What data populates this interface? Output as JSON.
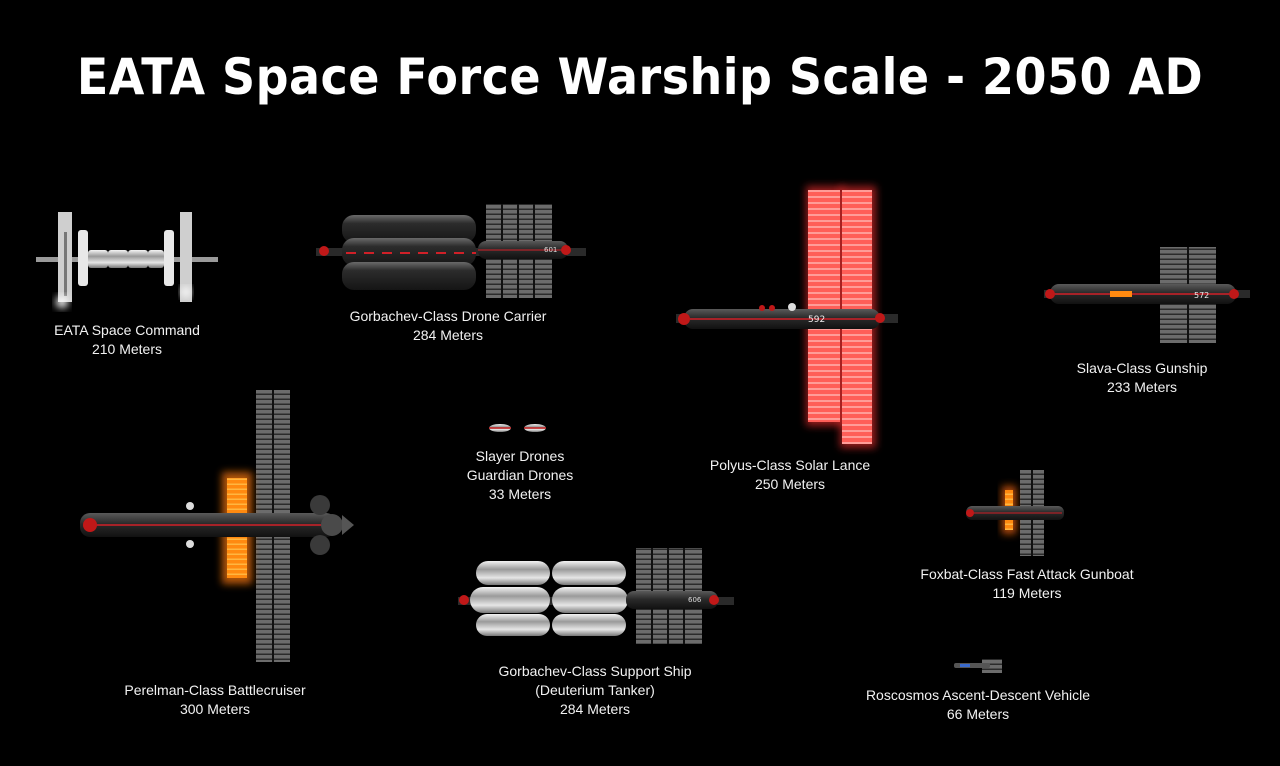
{
  "title": "EATA Space Force Warship Scale - 2050 AD",
  "colors": {
    "background": "#000000",
    "hull": "#3a3a3a",
    "accent_red": "#e0202a",
    "solar_glow": "#ff5a55",
    "panel_orange": "#ff9a1a"
  },
  "ships": {
    "command": {
      "name": "EATA Space Command",
      "length": "210 Meters"
    },
    "carrier": {
      "name": "Gorbachev-Class Drone Carrier",
      "length": "284 Meters",
      "hull_number": "601"
    },
    "lance": {
      "name": "Polyus-Class Solar Lance",
      "length": "250 Meters",
      "hull_number": "592"
    },
    "gunship": {
      "name": "Slava-Class Gunship",
      "length": "233 Meters",
      "hull_number": "572"
    },
    "drones": {
      "name1": "Slayer Drones",
      "name2": "Guardian Drones",
      "length": "33 Meters"
    },
    "cruiser": {
      "name": "Perelman-Class Battlecruiser",
      "length": "300 Meters"
    },
    "support": {
      "name": "Gorbachev-Class Support Ship",
      "subtitle": "(Deuterium Tanker)",
      "length": "284 Meters",
      "hull_number": "606"
    },
    "foxbat": {
      "name": "Foxbat-Class Fast Attack Gunboat",
      "length": "119 Meters"
    },
    "roscosmos": {
      "name": "Roscosmos Ascent-Descent Vehicle",
      "length": "66 Meters"
    }
  }
}
